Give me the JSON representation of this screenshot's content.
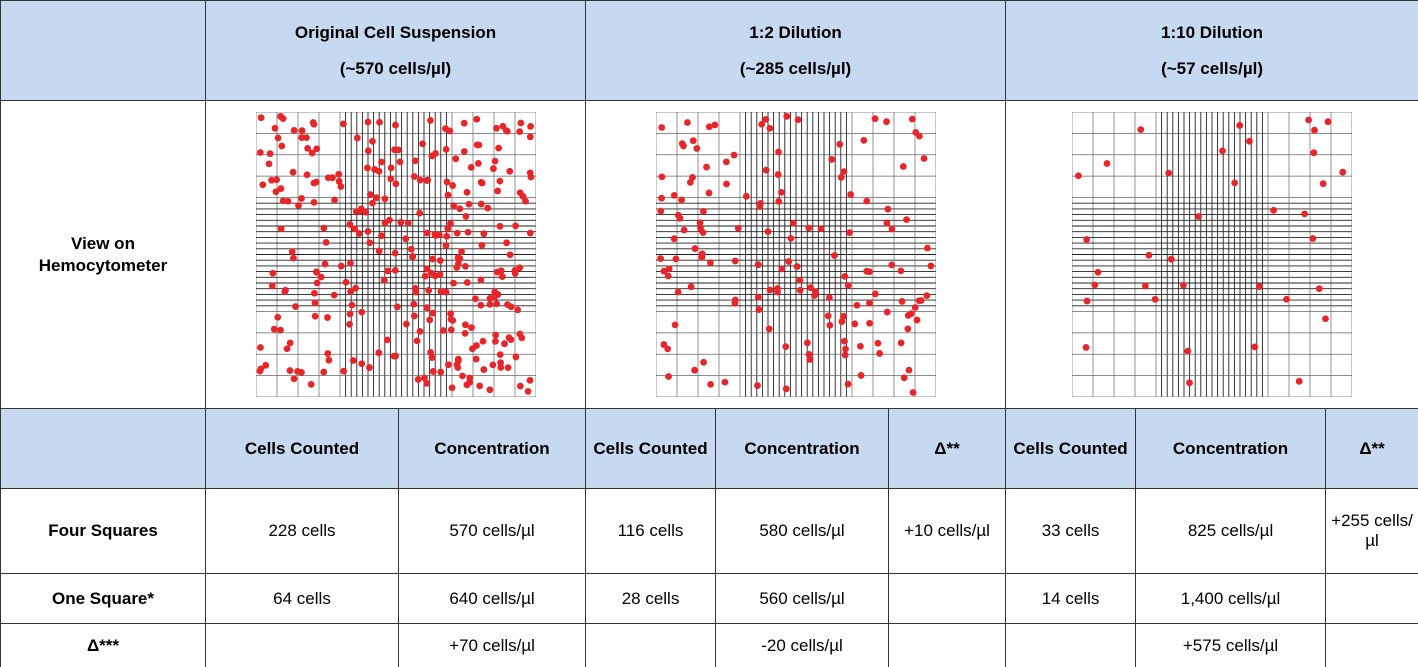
{
  "table": {
    "groups": [
      {
        "title": "Original Cell Suspension",
        "subtitle": "(~570 cells/µl)"
      },
      {
        "title": "1:2 Dilution",
        "subtitle": "(~285 cells/µl)"
      },
      {
        "title": "1:10 Dilution",
        "subtitle": "(~57 cells/µl)"
      }
    ],
    "image_row_label": "View on Hemocytometer",
    "columns": [
      [
        "Cells Counted",
        "Concentration"
      ],
      [
        "Cells Counted",
        "Concentration",
        "Δ**"
      ],
      [
        "Cells Counted",
        "Concentration",
        "Δ**"
      ]
    ],
    "rows": [
      {
        "label": "Four Squares",
        "cells": [
          "228 cells",
          "570 cells/µl",
          "116 cells",
          "580 cells/µl",
          "+10 cells/µl",
          "33 cells",
          "825 cells/µl",
          "+255 cells/µl"
        ]
      },
      {
        "label": "One Square*",
        "cells": [
          "64 cells",
          "640 cells/µl",
          "28 cells",
          "560 cells/µl",
          null,
          "14 cells",
          "1,400 cells/µl",
          null
        ]
      },
      {
        "label": "Δ***",
        "cells": [
          null,
          "+70 cells/µl",
          null,
          "-20 cells/µl",
          null,
          null,
          "+575 cells/µl",
          null
        ]
      }
    ]
  }
}
